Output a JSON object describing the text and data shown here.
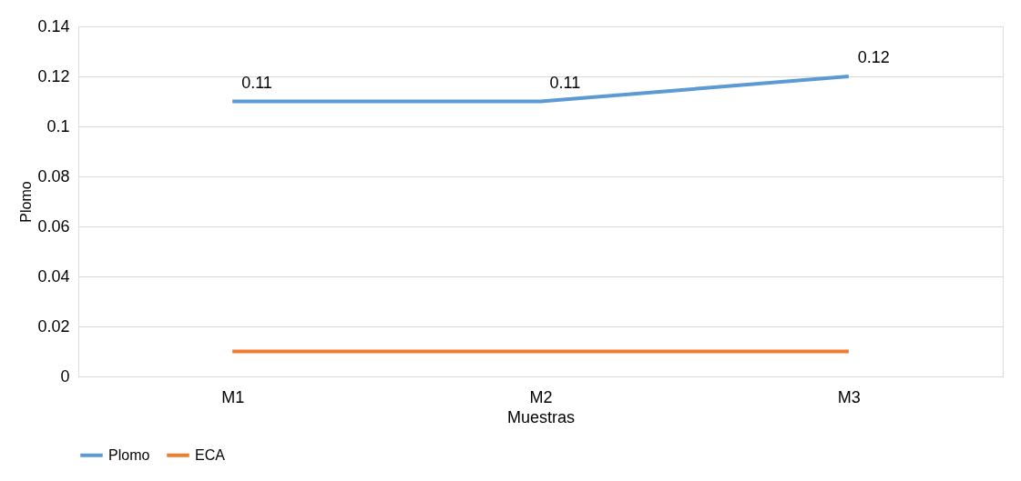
{
  "chart_data": {
    "type": "line",
    "xlabel": "Muestras",
    "ylabel": "Plomo",
    "categories": [
      "M1",
      "M2",
      "M3"
    ],
    "series": [
      {
        "name": "Plomo",
        "color": "#5b9bd5",
        "values": [
          0.11,
          0.11,
          0.12
        ],
        "value_labels": [
          "0.11",
          "0.11",
          "0.12"
        ]
      },
      {
        "name": "ECA",
        "color": "#ed7d31",
        "values": [
          0.01,
          0.01,
          0.01
        ]
      }
    ],
    "ylim": [
      0,
      0.14
    ],
    "yticks": [
      0,
      0.02,
      0.04,
      0.06,
      0.08,
      0.1,
      0.12,
      0.14
    ],
    "grid": "y",
    "legend": "bottom",
    "marker": "none",
    "line_style": "solid"
  }
}
